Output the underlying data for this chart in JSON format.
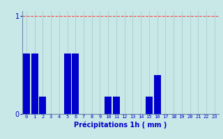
{
  "values": [
    0.62,
    0.62,
    0.18,
    0.0,
    0.0,
    0.62,
    0.62,
    0.0,
    0.0,
    0.0,
    0.18,
    0.18,
    0.0,
    0.0,
    0.0,
    0.18,
    0.4,
    0.0,
    0.0,
    0.0,
    0.0,
    0.0,
    0.0,
    0.0
  ],
  "bar_color": "#0000cc",
  "background_color": "#c8e8e8",
  "grid_color": "#aacccc",
  "xlabel": "Précipitations 1h ( mm )",
  "xlabel_color": "#0000cc",
  "tick_color": "#0000cc",
  "ylim": [
    0,
    1.05
  ],
  "yticks": [
    0,
    1
  ],
  "ytick_labels": [
    "0",
    "1"
  ],
  "bar_width": 0.85,
  "redline_color": "#ff4444",
  "spine_color": "#6688aa"
}
